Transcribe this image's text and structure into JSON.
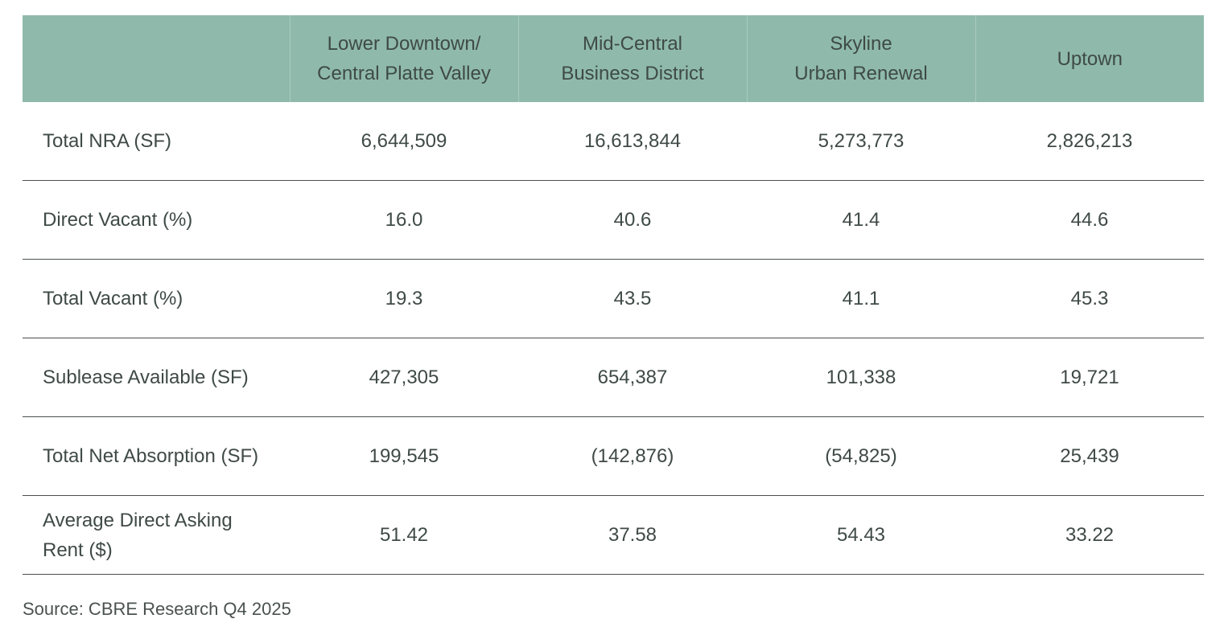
{
  "table": {
    "header": [
      [
        "Lower Downtown/",
        "Central Platte Valley"
      ],
      [
        "Mid-Central",
        "Business District"
      ],
      [
        "Skyline",
        "Urban Renewal"
      ],
      [
        "Uptown"
      ]
    ],
    "rows": [
      {
        "label": "Total NRA (SF)",
        "values": [
          "6,644,509",
          "16,613,844",
          "5,273,773",
          "2,826,213"
        ]
      },
      {
        "label": "Direct Vacant (%)",
        "values": [
          "16.0",
          "40.6",
          "41.4",
          "44.6"
        ]
      },
      {
        "label": "Total Vacant (%)",
        "values": [
          "19.3",
          "43.5",
          "41.1",
          "45.3"
        ]
      },
      {
        "label": "Sublease Available (SF)",
        "values": [
          "427,305",
          "654,387",
          "101,338",
          "19,721"
        ]
      },
      {
        "label": "Total Net Absorption (SF)",
        "values": [
          "199,545",
          "(142,876)",
          "(54,825)",
          "25,439"
        ]
      },
      {
        "label": "Average Direct Asking Rent ($)",
        "values": [
          "51.42",
          "37.58",
          "54.43",
          "33.22"
        ]
      }
    ]
  },
  "source": "Source: CBRE Research Q4 2025"
}
